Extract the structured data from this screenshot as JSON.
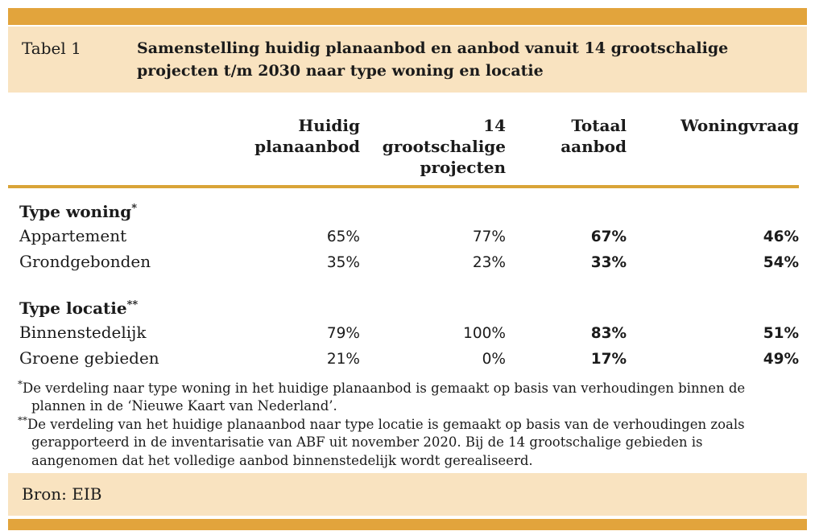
{
  "figure": {
    "tag": "Tabel 1",
    "title": "Samenstelling huidig planaanbod en aanbod vanuit 14 grootschalige projecten t/m 2030 naar type woning en locatie",
    "source": "Bron: EIB"
  },
  "table": {
    "columns": [
      {
        "label": "Huidig planaanbod",
        "lines": [
          "Huidig",
          "planaanbod"
        ]
      },
      {
        "label": "14 grootschalige projecten",
        "lines": [
          "14",
          "grootschalige",
          "projecten"
        ]
      },
      {
        "label": "Totaal aanbod",
        "lines": [
          "Totaal",
          "aanbod"
        ]
      },
      {
        "label": "Woningvraag",
        "lines": [
          "Woningvraag"
        ]
      }
    ],
    "sections": [
      {
        "header": "Type woning",
        "header_marker": "*",
        "rows": [
          {
            "label": "Appartement",
            "values": [
              "65%",
              "77%",
              "67%",
              "46%"
            ]
          },
          {
            "label": "Grondgebonden",
            "values": [
              "35%",
              "23%",
              "33%",
              "54%"
            ]
          }
        ]
      },
      {
        "header": "Type locatie",
        "header_marker": "**",
        "rows": [
          {
            "label": "Binnenstedelijk",
            "values": [
              "79%",
              "100%",
              "83%",
              "51%"
            ]
          },
          {
            "label": "Groene gebieden",
            "values": [
              "21%",
              "0%",
              "17%",
              "49%"
            ]
          }
        ]
      }
    ]
  },
  "footnotes": [
    {
      "marker": "*",
      "text": "De verdeling naar type woning in het huidige planaanbod is gemaakt op basis van verhoudingen binnen de plannen in de ‘Nieuwe Kaart van Nederland’."
    },
    {
      "marker": "**",
      "text": "De verdeling van het huidige planaanbod naar type locatie is gemaakt op basis van de verhoudingen zoals gerapporteerd in de inventarisatie van ABF uit november 2020. Bij de 14 grootschalige gebieden is aangenomen dat het volledige aanbod binnenstedelijk wordt gerealiseerd."
    }
  ],
  "colors": {
    "accent_bar": "#E2A43C",
    "band_background": "#F9E3C0",
    "header_rule": "#D9A437",
    "text": "#1B1B1B"
  }
}
